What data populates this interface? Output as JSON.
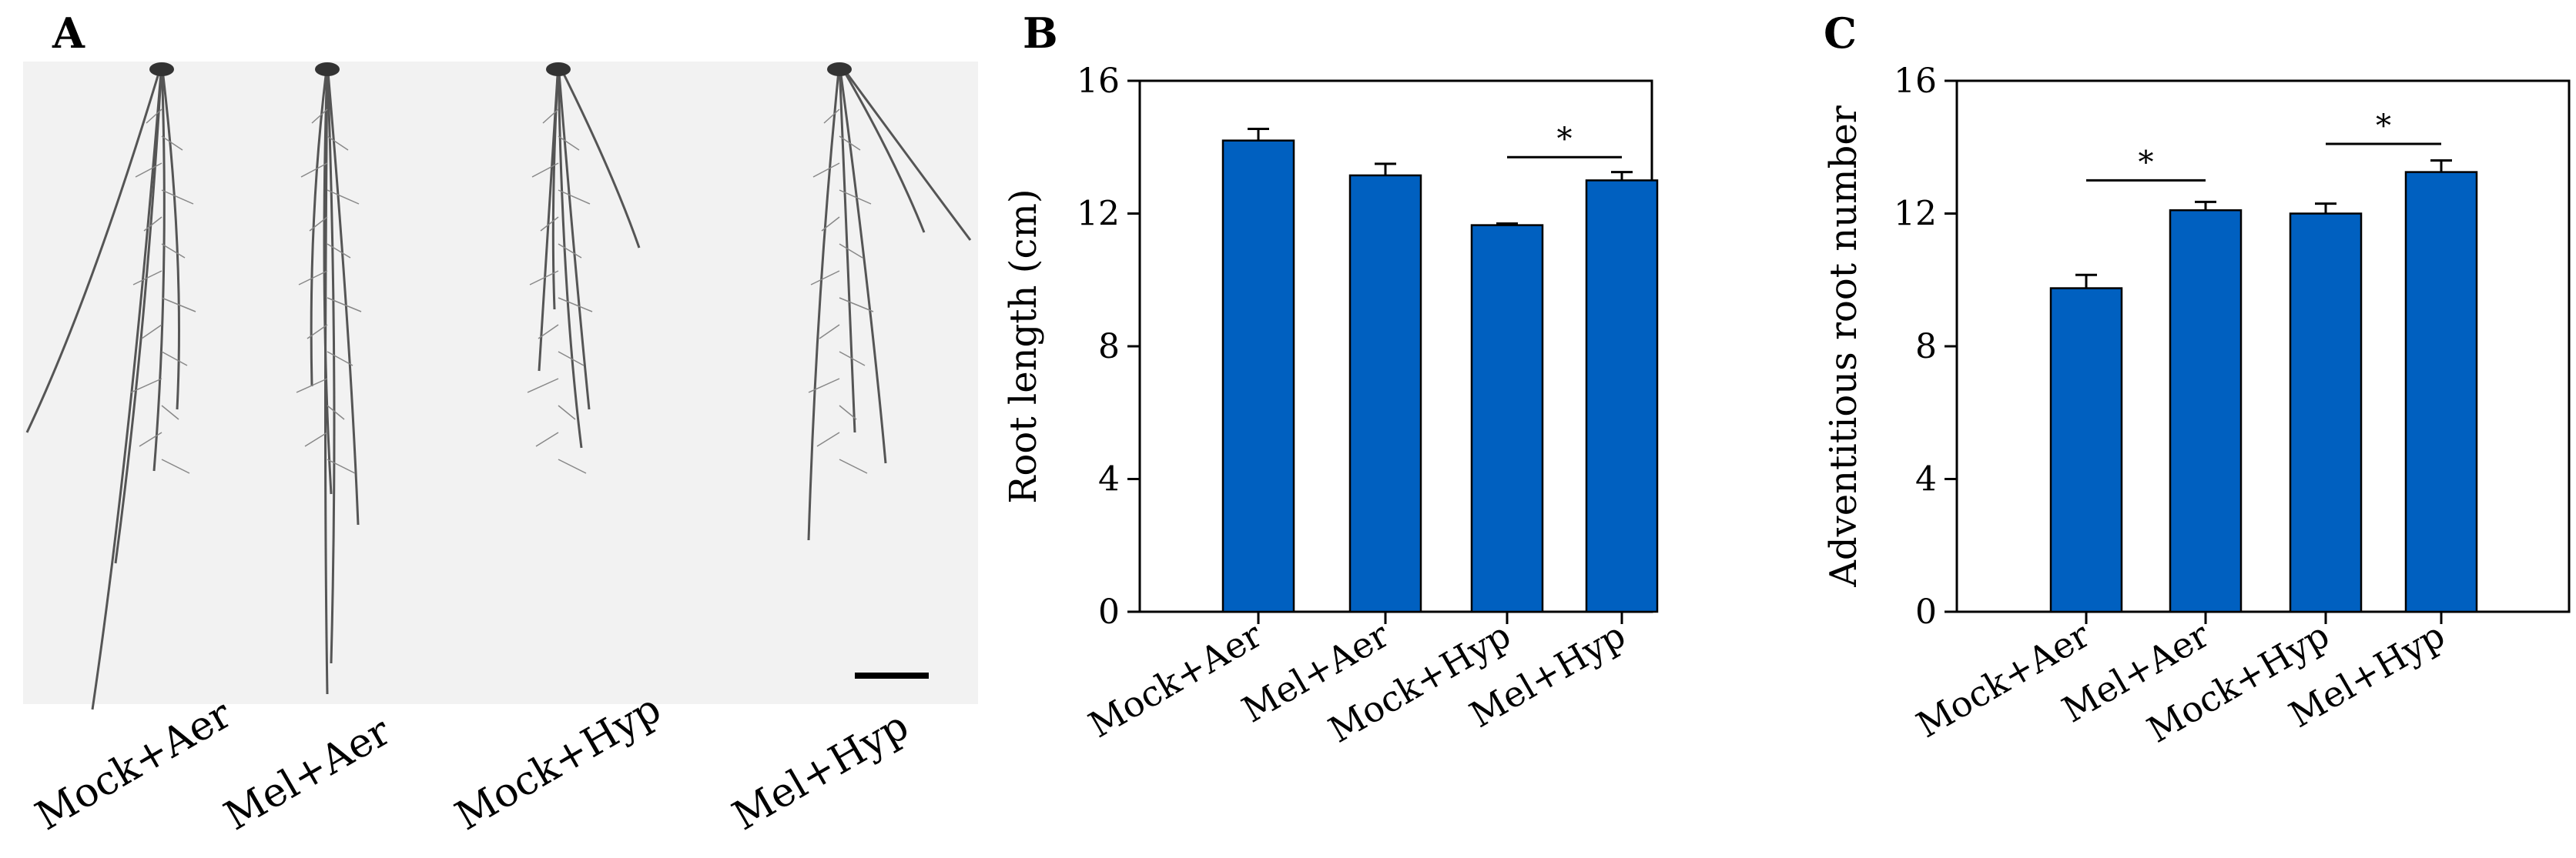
{
  "panels": {
    "A": {
      "letter": "A",
      "labels": [
        "Mock+Aer",
        "Mel+Aer",
        "Mock+Hyp",
        "Mel+Hyp"
      ],
      "scale_bar": true
    },
    "B": {
      "letter": "B"
    },
    "C": {
      "letter": "C"
    }
  },
  "colors": {
    "bar": "#0060C0",
    "axis": "#000000",
    "root": "#555555",
    "photo_bg": "#f2f2f2"
  },
  "chart_data": [
    {
      "id": "B",
      "type": "bar",
      "title": "",
      "xlabel": "",
      "ylabel": "Root length (cm)",
      "ylim": [
        0,
        16
      ],
      "yticks": [
        0,
        4,
        8,
        12,
        16
      ],
      "categories": [
        "Mock+Aer",
        "Mel+Aer",
        "Mock+Hyp",
        "Mel+Hyp"
      ],
      "values": [
        14.2,
        13.15,
        11.65,
        13.0
      ],
      "errors": [
        0.35,
        0.35,
        0.05,
        0.25
      ],
      "significance": [
        {
          "pair": [
            2,
            3
          ],
          "label": "*",
          "y": 13.7
        }
      ]
    },
    {
      "id": "C",
      "type": "bar",
      "title": "",
      "xlabel": "",
      "ylabel": "Adventitious root number",
      "ylim": [
        0,
        16
      ],
      "yticks": [
        0,
        4,
        8,
        12,
        16
      ],
      "categories": [
        "Mock+Aer",
        "Mel+Aer",
        "Mock+Hyp",
        "Mel+Hyp"
      ],
      "values": [
        9.75,
        12.1,
        12.0,
        13.25
      ],
      "errors": [
        0.4,
        0.25,
        0.3,
        0.35
      ],
      "significance": [
        {
          "pair": [
            0,
            1
          ],
          "label": "*",
          "y": 13.0
        },
        {
          "pair": [
            2,
            3
          ],
          "label": "*",
          "y": 14.1
        }
      ]
    }
  ]
}
